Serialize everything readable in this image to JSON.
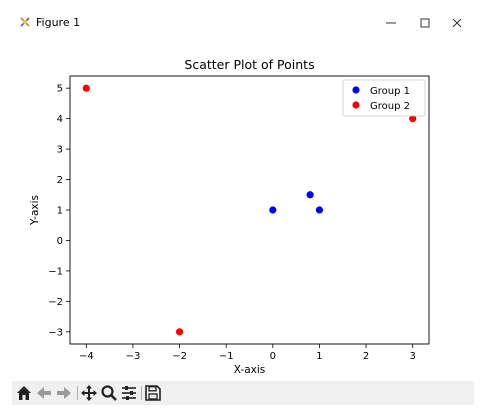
{
  "window": {
    "title": "Figure 1"
  },
  "toolbar": {
    "buttons": [
      {
        "name": "home-icon"
      },
      {
        "name": "back-icon"
      },
      {
        "name": "forward-icon"
      },
      {
        "name": "pan-icon"
      },
      {
        "name": "zoom-icon"
      },
      {
        "name": "configure-subplots-icon"
      },
      {
        "name": "save-icon"
      }
    ]
  },
  "chart_data": {
    "type": "scatter",
    "title": "Scatter Plot of Points",
    "xlabel": "X-axis",
    "ylabel": "Y-axis",
    "xlim": [
      -4.35,
      3.35
    ],
    "ylim": [
      -3.4,
      5.4
    ],
    "xticks": [
      -4,
      -3,
      -2,
      -1,
      0,
      1,
      2,
      3
    ],
    "xtick_labels": [
      "−4",
      "−3",
      "−2",
      "−1",
      "0",
      "1",
      "2",
      "3"
    ],
    "yticks": [
      -3,
      -2,
      -1,
      0,
      1,
      2,
      3,
      4,
      5
    ],
    "ytick_labels": [
      "−3",
      "−2",
      "−1",
      "0",
      "1",
      "2",
      "3",
      "4",
      "5"
    ],
    "grid": false,
    "legend_position": "top-right",
    "series": [
      {
        "name": "Group 1",
        "color": "#0000ff",
        "points": [
          [
            0,
            1
          ],
          [
            1,
            1
          ],
          [
            0.8,
            1.5
          ]
        ]
      },
      {
        "name": "Group 2",
        "color": "#ff0000",
        "points": [
          [
            -4,
            5
          ],
          [
            3,
            4
          ],
          [
            -2,
            -3
          ]
        ]
      }
    ]
  }
}
